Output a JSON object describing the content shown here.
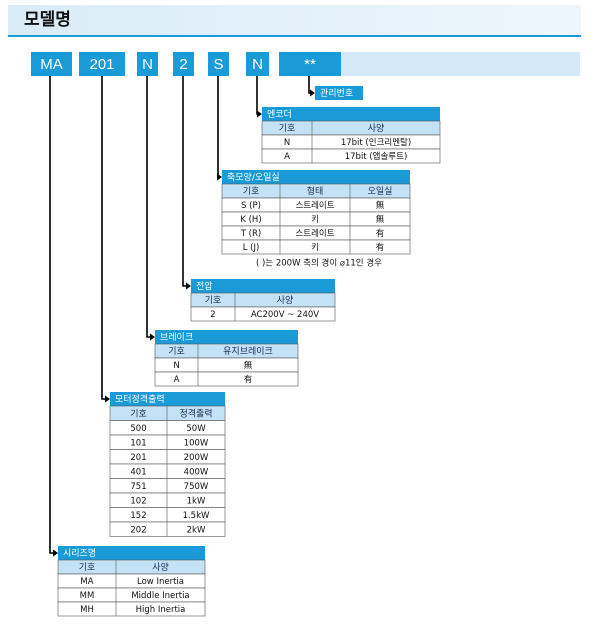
{
  "header": {
    "title": "모델명"
  },
  "code": [
    "MA",
    "201",
    "N",
    "2",
    "S",
    "N",
    "**"
  ],
  "sections": [
    {
      "title": "관리번호"
    },
    {
      "title": "엔코더",
      "columns": [
        "기호",
        "사양"
      ],
      "rows": [
        [
          "N",
          "17bit (인크리멘탈)"
        ],
        [
          "A",
          "17bit (앱솔루트)"
        ]
      ]
    },
    {
      "title": "축모양/오일실",
      "columns": [
        "기호",
        "형태",
        "오일실"
      ],
      "rows": [
        [
          "S (P)",
          "스트레이트",
          "無"
        ],
        [
          "K (H)",
          "키",
          "無"
        ],
        [
          "T (R)",
          "스트레이트",
          "有"
        ],
        [
          "L (J)",
          "키",
          "有"
        ]
      ],
      "note": "( )는 200W 축의 경이 ⌀11인 경우"
    },
    {
      "title": "전압",
      "columns": [
        "기호",
        "사양"
      ],
      "rows": [
        [
          "2",
          "AC200V ~ 240V"
        ]
      ]
    },
    {
      "title": "브레이크",
      "columns": [
        "기호",
        "유지브레이크"
      ],
      "rows": [
        [
          "N",
          "無"
        ],
        [
          "A",
          "有"
        ]
      ]
    },
    {
      "title": "모터정격출력",
      "columns": [
        "기호",
        "정격출력"
      ],
      "rows": [
        [
          "500",
          "50W"
        ],
        [
          "101",
          "100W"
        ],
        [
          "201",
          "200W"
        ],
        [
          "401",
          "400W"
        ],
        [
          "751",
          "750W"
        ],
        [
          "102",
          "1kW"
        ],
        [
          "152",
          "1.5kW"
        ],
        [
          "202",
          "2kW"
        ]
      ]
    },
    {
      "title": "시리즈명",
      "columns": [
        "기호",
        "사양"
      ],
      "rows": [
        [
          "MA",
          "Low Inertia"
        ],
        [
          "MM",
          "Middle Inertia"
        ],
        [
          "MH",
          "High Inertia"
        ]
      ]
    }
  ]
}
